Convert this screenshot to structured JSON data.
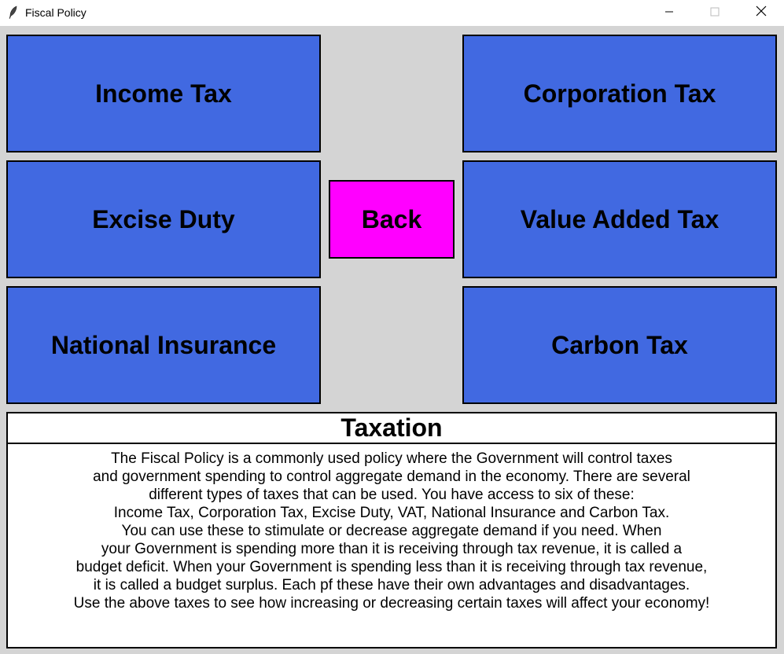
{
  "window": {
    "title": "Fiscal Policy",
    "app_icon": "feather-icon",
    "controls": [
      "minimize-icon",
      "maximize-icon",
      "close-icon"
    ]
  },
  "buttons": {
    "income_tax": "Income Tax",
    "corporation_tax": "Corporation Tax",
    "excise_duty": "Excise Duty",
    "value_added_tax": "Value Added Tax",
    "national_insurance": "National Insurance",
    "carbon_tax": "Carbon Tax",
    "back": "Back"
  },
  "info": {
    "title": "Taxation",
    "lines": [
      "The Fiscal Policy is a commonly used policy where the Government will control taxes",
      "and government spending to control aggregate demand in the economy. There are several",
      "different types of taxes that can be used. You have access to six of these:",
      "Income Tax, Corporation Tax, Excise Duty, VAT, National Insurance and Carbon Tax.",
      "You can use these to stimulate or decrease aggregate demand if you need. When",
      "your Government is spending more than it is receiving through tax revenue, it is called a",
      "budget deficit. When your Government is spending less than it is receiving through tax revenue,",
      "it is called a budget surplus. Each pf these have their own advantages and disadvantages.",
      "Use the above taxes to see how increasing or decreasing certain taxes will affect your economy!"
    ]
  },
  "colors": {
    "tax_button": "#4169e1",
    "back_button": "#ff00ff",
    "background": "#d4d4d4",
    "panel": "#ffffff"
  }
}
